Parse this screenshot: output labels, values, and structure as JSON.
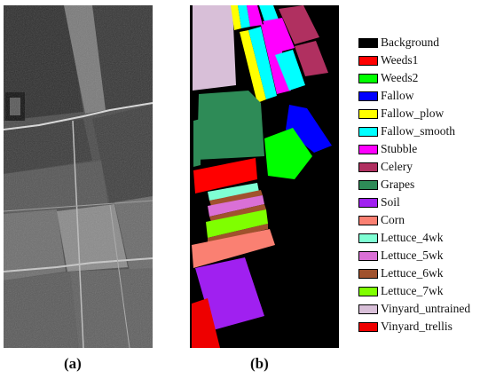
{
  "captions": {
    "a": "(a)",
    "b": "(b)"
  },
  "legend": [
    {
      "label": "Background",
      "color": "#000000"
    },
    {
      "label": "Weeds1",
      "color": "#ff0000"
    },
    {
      "label": "Weeds2",
      "color": "#00ff00"
    },
    {
      "label": "Fallow",
      "color": "#0000ff"
    },
    {
      "label": "Fallow_plow",
      "color": "#ffff00"
    },
    {
      "label": "Fallow_smooth",
      "color": "#00ffff"
    },
    {
      "label": "Stubble",
      "color": "#ff00ff"
    },
    {
      "label": "Celery",
      "color": "#b03060"
    },
    {
      "label": "Grapes",
      "color": "#2e8b57"
    },
    {
      "label": "Soil",
      "color": "#a020f0"
    },
    {
      "label": "Corn",
      "color": "#fa8072"
    },
    {
      "label": "Lettuce_4wk",
      "color": "#7fffd4"
    },
    {
      "label": "Lettuce_5wk",
      "color": "#da70d6"
    },
    {
      "label": "Lettuce_6wk",
      "color": "#a0522d"
    },
    {
      "label": "Lettuce_7wk",
      "color": "#7fff00"
    },
    {
      "label": "Vinyard_untrained",
      "color": "#d8bfd8"
    },
    {
      "label": "Vinyard_trellis",
      "color": "#ee0000"
    }
  ]
}
